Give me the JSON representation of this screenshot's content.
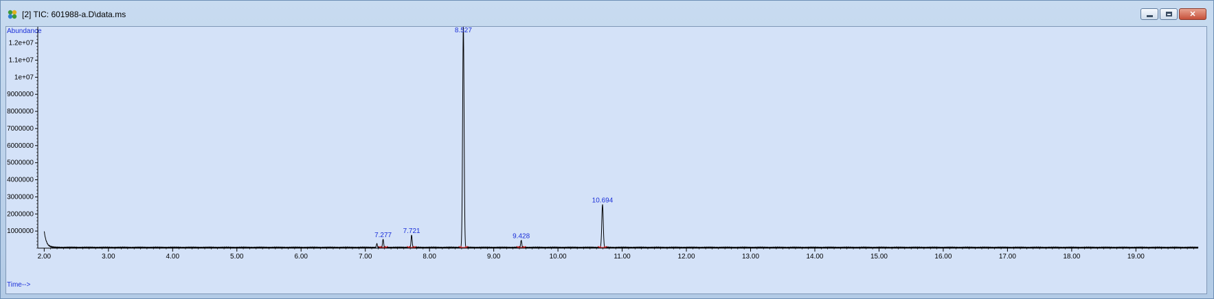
{
  "window": {
    "title": "[2] TIC: 601988-a.D\\data.ms",
    "controls": {
      "minimize": "minimize",
      "restore": "restore",
      "close": "close"
    }
  },
  "colors": {
    "plot_bg": "#d4e2f8",
    "trace": "#000000",
    "label_blue": "#1b2fd8",
    "baseline_red": "#d02020"
  },
  "chart_data": {
    "type": "line",
    "title": "TIC: 601988-a.D\\data.ms",
    "ylabel": "Abundance",
    "xlabel": "Time-->",
    "xlim": [
      1.9,
      19.97
    ],
    "ylim": [
      0,
      12950000
    ],
    "x_ticks": [
      "2.00",
      "3.00",
      "4.00",
      "5.00",
      "6.00",
      "7.00",
      "8.00",
      "9.00",
      "10.00",
      "11.00",
      "12.00",
      "13.00",
      "14.00",
      "15.00",
      "16.00",
      "17.00",
      "18.00",
      "19.00"
    ],
    "x_tick_values": [
      2,
      3,
      4,
      5,
      6,
      7,
      8,
      9,
      10,
      11,
      12,
      13,
      14,
      15,
      16,
      17,
      18,
      19
    ],
    "y_ticks": [
      "1000000",
      "2000000",
      "3000000",
      "4000000",
      "5000000",
      "6000000",
      "7000000",
      "8000000",
      "9000000",
      "1e+07",
      "1.1e+07",
      "1.2e+07"
    ],
    "y_tick_values": [
      1000000,
      2000000,
      3000000,
      4000000,
      5000000,
      6000000,
      7000000,
      8000000,
      9000000,
      10000000,
      11000000,
      12000000
    ],
    "peaks": [
      {
        "label": "7.277",
        "rt": 7.277,
        "height": 480000,
        "width": 0.012
      },
      {
        "label": "7.721",
        "rt": 7.721,
        "height": 720000,
        "width": 0.012
      },
      {
        "label": "8.527",
        "rt": 8.527,
        "height": 12950000,
        "width": 0.016
      },
      {
        "label": "9.428",
        "rt": 9.428,
        "height": 420000,
        "width": 0.012
      },
      {
        "label": "10.694",
        "rt": 10.694,
        "height": 2520000,
        "width": 0.016
      }
    ],
    "minor_peaks": [
      {
        "rt": 7.18,
        "height": 230000,
        "width": 0.01
      }
    ],
    "initial_tail": {
      "start": 2.0,
      "height": 950000,
      "decay": 0.035
    },
    "baseline": 40000
  }
}
